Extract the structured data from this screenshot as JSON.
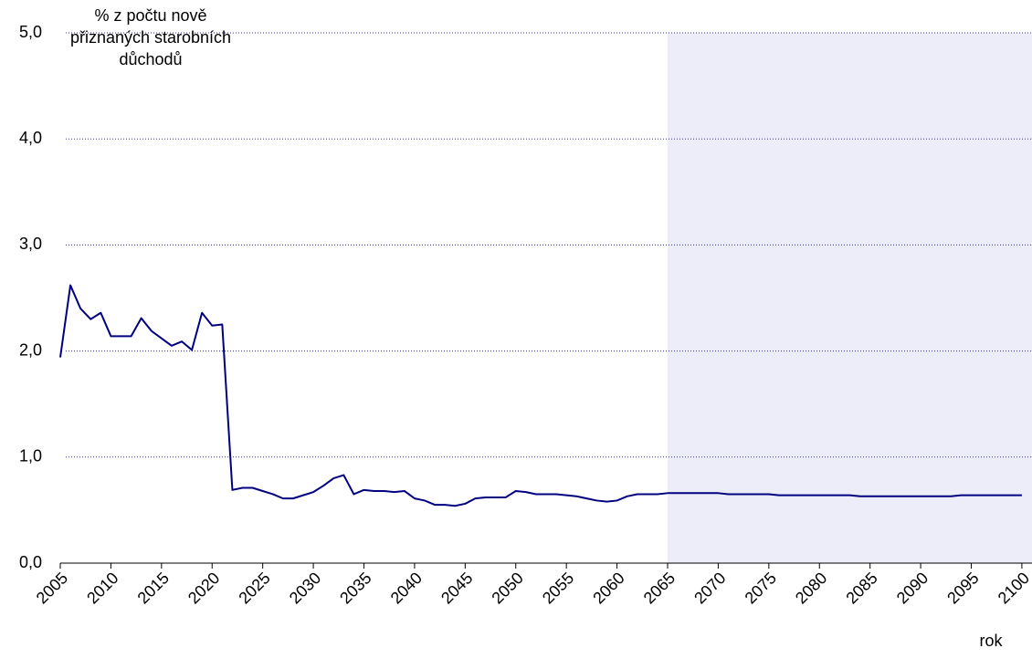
{
  "chart_data": {
    "type": "line",
    "ylabel": [
      "% z počtu nově",
      "přiznaných starobních",
      "důchodů"
    ],
    "xlabel": "rok",
    "x": [
      2005,
      2006,
      2007,
      2008,
      2009,
      2010,
      2011,
      2012,
      2013,
      2014,
      2015,
      2016,
      2017,
      2018,
      2019,
      2020,
      2021,
      2022,
      2023,
      2024,
      2025,
      2026,
      2027,
      2028,
      2029,
      2030,
      2031,
      2032,
      2033,
      2034,
      2035,
      2036,
      2037,
      2038,
      2039,
      2040,
      2041,
      2042,
      2043,
      2044,
      2045,
      2046,
      2047,
      2048,
      2049,
      2050,
      2051,
      2052,
      2053,
      2054,
      2055,
      2056,
      2057,
      2058,
      2059,
      2060,
      2061,
      2062,
      2063,
      2064,
      2065,
      2066,
      2067,
      2068,
      2069,
      2070,
      2071,
      2072,
      2073,
      2074,
      2075,
      2076,
      2077,
      2078,
      2079,
      2080,
      2081,
      2082,
      2083,
      2084,
      2085,
      2086,
      2087,
      2088,
      2089,
      2090,
      2091,
      2092,
      2093,
      2094,
      2095,
      2096,
      2097,
      2098,
      2099,
      2100
    ],
    "series": [
      {
        "color": "#000080",
        "values": [
          1.94,
          2.62,
          2.4,
          2.3,
          2.36,
          2.14,
          2.14,
          2.14,
          2.31,
          2.19,
          2.12,
          2.05,
          2.09,
          2.01,
          2.36,
          2.24,
          2.25,
          0.69,
          0.71,
          0.71,
          0.68,
          0.65,
          0.61,
          0.61,
          0.64,
          0.67,
          0.73,
          0.8,
          0.83,
          0.65,
          0.69,
          0.68,
          0.68,
          0.67,
          0.68,
          0.61,
          0.59,
          0.55,
          0.55,
          0.54,
          0.56,
          0.61,
          0.62,
          0.62,
          0.62,
          0.68,
          0.67,
          0.65,
          0.65,
          0.65,
          0.64,
          0.63,
          0.61,
          0.59,
          0.58,
          0.59,
          0.63,
          0.65,
          0.65,
          0.65,
          0.66,
          0.66,
          0.66,
          0.66,
          0.66,
          0.66,
          0.65,
          0.65,
          0.65,
          0.65,
          0.65,
          0.64,
          0.64,
          0.64,
          0.64,
          0.64,
          0.64,
          0.64,
          0.64,
          0.63,
          0.63,
          0.63,
          0.63,
          0.63,
          0.63,
          0.63,
          0.63,
          0.63,
          0.63,
          0.64,
          0.64,
          0.64,
          0.64,
          0.64,
          0.64,
          0.64
        ]
      }
    ],
    "xlim": [
      2005,
      2101
    ],
    "ylim": [
      0,
      5
    ],
    "xticks": [
      2005,
      2010,
      2015,
      2020,
      2025,
      2030,
      2035,
      2040,
      2045,
      2050,
      2055,
      2060,
      2065,
      2070,
      2075,
      2080,
      2085,
      2090,
      2095,
      2100
    ],
    "yticks": [
      {
        "value": 0,
        "label": "0,0"
      },
      {
        "value": 1,
        "label": "1,0"
      },
      {
        "value": 2,
        "label": "2,0"
      },
      {
        "value": 3,
        "label": "3,0"
      },
      {
        "value": 4,
        "label": "4,0"
      },
      {
        "value": 5,
        "label": "5,0"
      }
    ],
    "grid": true,
    "highlight": {
      "from": 2065,
      "to": 2101,
      "color": "#ededfa"
    }
  }
}
